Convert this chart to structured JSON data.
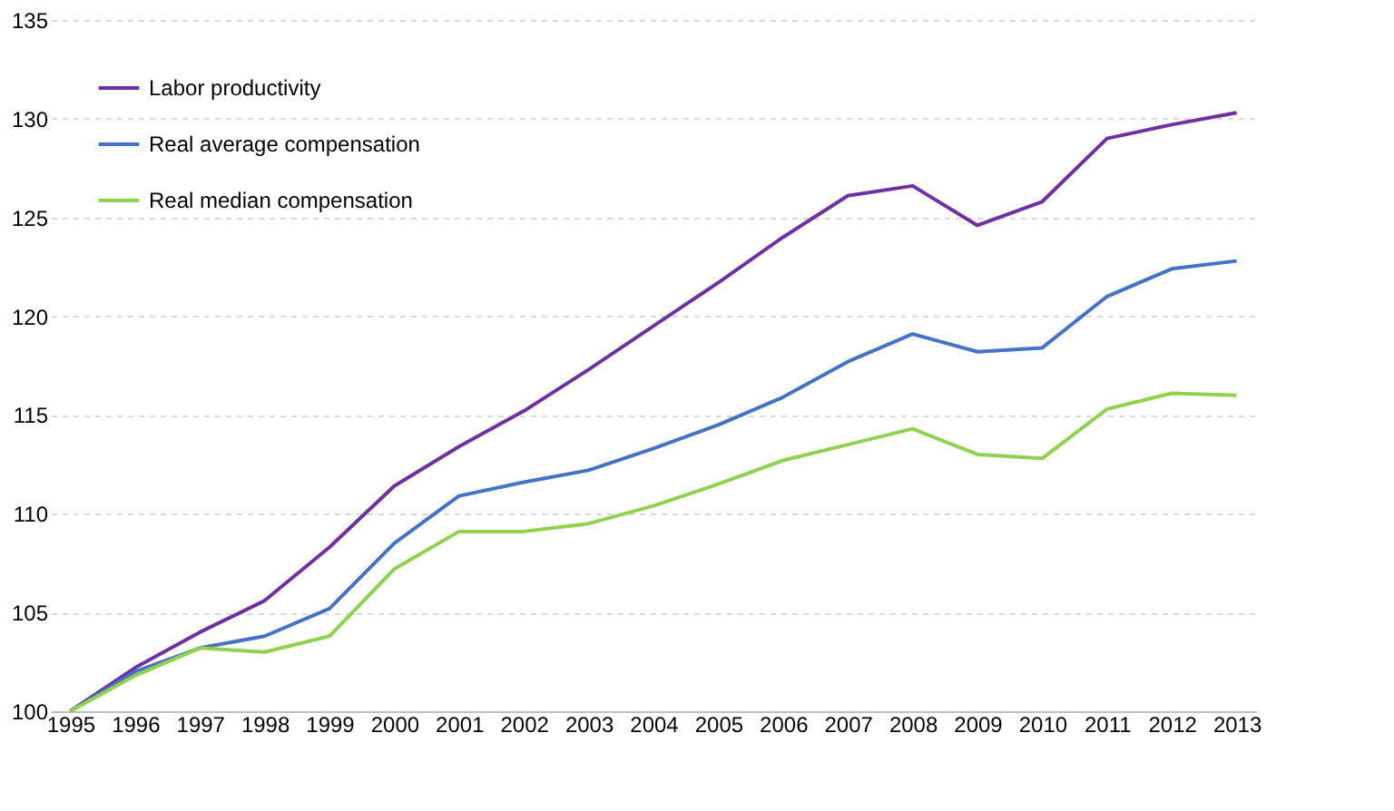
{
  "chart_data": {
    "type": "line",
    "categories": [
      "1995",
      "1996",
      "1997",
      "1998",
      "1999",
      "2000",
      "2001",
      "2002",
      "2003",
      "2004",
      "2005",
      "2006",
      "2007",
      "2008",
      "2009",
      "2010",
      "2011",
      "2012",
      "2013"
    ],
    "series": [
      {
        "name": "Labor productivity",
        "color": "#7030a0",
        "values": [
          100,
          102.2,
          104.0,
          105.6,
          108.3,
          111.4,
          113.4,
          115.2,
          117.3,
          119.5,
          121.7,
          124.0,
          126.1,
          126.6,
          124.6,
          125.8,
          129.0,
          129.7,
          130.3
        ]
      },
      {
        "name": "Real average compensation",
        "color": "#4472c4",
        "values": [
          100,
          102.0,
          103.2,
          103.8,
          105.2,
          108.5,
          110.9,
          111.6,
          112.2,
          113.3,
          114.5,
          115.9,
          117.7,
          119.1,
          118.2,
          118.4,
          121.0,
          122.4,
          122.8
        ]
      },
      {
        "name": "Real median compensation",
        "color": "#92d050",
        "values": [
          100,
          101.8,
          103.2,
          103.0,
          103.8,
          107.2,
          109.1,
          109.1,
          109.5,
          110.4,
          111.5,
          112.7,
          113.5,
          114.3,
          113.0,
          112.8,
          115.3,
          116.1,
          116.0
        ]
      }
    ],
    "ylim": [
      100,
      135
    ],
    "yticks": [
      100,
      105,
      110,
      115,
      120,
      125,
      130,
      135
    ],
    "grid": "y",
    "legend": "top left",
    "marker": "none",
    "line_style": "solid"
  }
}
